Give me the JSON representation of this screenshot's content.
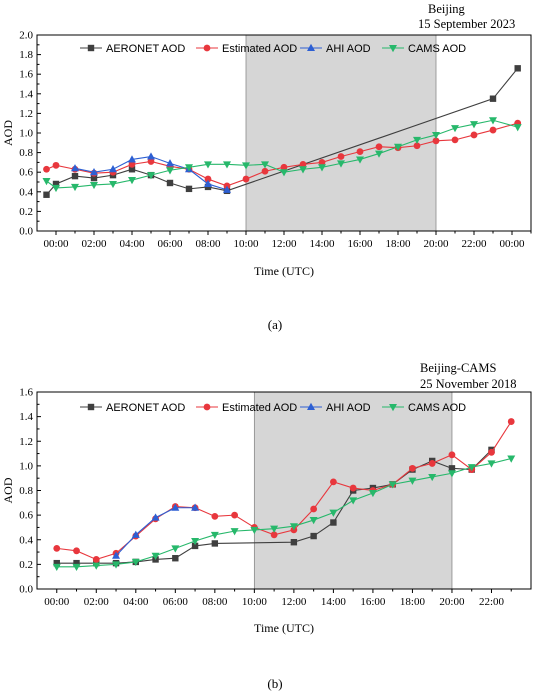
{
  "chart_data": [
    {
      "type": "line",
      "panel_label": "(a)",
      "annotation": [
        "Beijing",
        "15 September 2023"
      ],
      "xlabel": "Time (UTC)",
      "ylabel": "AOD",
      "ylim": [
        0,
        2.0
      ],
      "yticks": [
        "0.0",
        "0.2",
        "0.4",
        "0.6",
        "0.8",
        "1.0",
        "1.2",
        "1.4",
        "1.6",
        "1.8",
        "2.0"
      ],
      "xlim": [
        -1,
        25
      ],
      "xticks": [
        "00:00",
        "02:00",
        "04:00",
        "06:00",
        "08:00",
        "10:00",
        "12:00",
        "14:00",
        "16:00",
        "18:00",
        "20:00",
        "22:00",
        "00:00"
      ],
      "shaded_range": [
        10,
        20
      ],
      "grid": false,
      "legend_position": "top",
      "series": [
        {
          "name": "AERONET AOD",
          "color": "#3f3f3f",
          "marker": "square",
          "x": [
            -0.5,
            0,
            1,
            2,
            3,
            4,
            5,
            6,
            7,
            8,
            9,
            23,
            24.3
          ],
          "y": [
            0.37,
            0.48,
            0.56,
            0.54,
            0.57,
            0.63,
            0.57,
            0.49,
            0.43,
            0.45,
            0.41,
            1.35,
            1.66
          ]
        },
        {
          "name": "Estimated AOD",
          "color": "#e8373d",
          "marker": "circle",
          "x": [
            -0.5,
            0,
            1,
            2,
            3,
            4,
            5,
            6,
            7,
            8,
            9,
            10,
            11,
            12,
            13,
            14,
            15,
            16,
            17,
            18,
            19,
            20,
            21,
            22,
            23,
            24.3
          ],
          "y": [
            0.63,
            0.67,
            0.63,
            0.59,
            0.6,
            0.68,
            0.71,
            0.66,
            0.63,
            0.53,
            0.46,
            0.53,
            0.61,
            0.65,
            0.68,
            0.7,
            0.76,
            0.81,
            0.86,
            0.85,
            0.87,
            0.92,
            0.93,
            0.98,
            1.03,
            1.1
          ]
        },
        {
          "name": "AHI AOD",
          "color": "#2d5fd3",
          "marker": "triangle-up",
          "x": [
            1,
            2,
            3,
            4,
            5,
            6,
            7,
            8,
            9
          ],
          "y": [
            0.64,
            0.6,
            0.63,
            0.73,
            0.76,
            0.69,
            0.63,
            0.48,
            0.42
          ]
        },
        {
          "name": "CAMS AOD",
          "color": "#27b86b",
          "marker": "triangle-down",
          "x": [
            -0.5,
            0,
            1,
            2,
            3,
            4,
            5,
            6,
            7,
            8,
            9,
            10,
            11,
            12,
            13,
            14,
            15,
            16,
            17,
            18,
            19,
            20,
            21,
            22,
            23,
            24.3
          ],
          "y": [
            0.51,
            0.44,
            0.45,
            0.47,
            0.48,
            0.52,
            0.57,
            0.62,
            0.65,
            0.68,
            0.68,
            0.67,
            0.68,
            0.6,
            0.63,
            0.65,
            0.69,
            0.73,
            0.79,
            0.86,
            0.93,
            0.98,
            1.05,
            1.09,
            1.13,
            1.06
          ]
        }
      ]
    },
    {
      "type": "line",
      "panel_label": "(b)",
      "annotation": [
        "Beijing-CAMS",
        "25 November  2018"
      ],
      "xlabel": "Time (UTC)",
      "ylabel": "AOD",
      "ylim": [
        0,
        1.6
      ],
      "yticks": [
        "0.0",
        "0.2",
        "0.4",
        "0.6",
        "0.8",
        "1.0",
        "1.2",
        "1.4",
        "1.6"
      ],
      "xlim": [
        -1,
        24
      ],
      "xticks": [
        "00:00",
        "02:00",
        "04:00",
        "06:00",
        "08:00",
        "10:00",
        "12:00",
        "14:00",
        "16:00",
        "18:00",
        "20:00",
        "22:00"
      ],
      "shaded_range": [
        10,
        20
      ],
      "grid": false,
      "legend_position": "top",
      "series": [
        {
          "name": "AERONET AOD",
          "color": "#3f3f3f",
          "marker": "square",
          "x": [
            0,
            1,
            2,
            3,
            4,
            5,
            6,
            7,
            8,
            12,
            13,
            14,
            15,
            16,
            17,
            18,
            19,
            20,
            21,
            22
          ],
          "y": [
            0.21,
            0.21,
            0.21,
            0.21,
            0.22,
            0.24,
            0.25,
            0.35,
            0.37,
            0.38,
            0.43,
            0.54,
            0.8,
            0.82,
            0.85,
            0.97,
            1.04,
            0.98,
            0.97,
            1.13
          ]
        },
        {
          "name": "Estimated AOD",
          "color": "#e8373d",
          "marker": "circle",
          "x": [
            0,
            1,
            2,
            3,
            4,
            5,
            6,
            7,
            8,
            9,
            10,
            11,
            12,
            13,
            14,
            15,
            16,
            17,
            18,
            19,
            20,
            21,
            22,
            23
          ],
          "y": [
            0.33,
            0.31,
            0.24,
            0.29,
            0.43,
            0.57,
            0.67,
            0.66,
            0.59,
            0.6,
            0.5,
            0.44,
            0.48,
            0.65,
            0.87,
            0.82,
            0.8,
            0.85,
            0.98,
            1.02,
            1.09,
            0.97,
            1.11,
            1.36
          ]
        },
        {
          "name": "AHI AOD",
          "color": "#2d5fd3",
          "marker": "triangle-up",
          "x": [
            3,
            4,
            5,
            6,
            7
          ],
          "y": [
            0.27,
            0.44,
            0.58,
            0.66,
            0.66
          ]
        },
        {
          "name": "CAMS AOD",
          "color": "#27b86b",
          "marker": "triangle-down",
          "x": [
            0,
            1,
            2,
            3,
            4,
            5,
            6,
            7,
            8,
            9,
            10,
            11,
            12,
            13,
            14,
            15,
            16,
            17,
            18,
            19,
            20,
            21,
            22,
            23
          ],
          "y": [
            0.18,
            0.18,
            0.19,
            0.2,
            0.22,
            0.27,
            0.33,
            0.39,
            0.44,
            0.47,
            0.48,
            0.49,
            0.51,
            0.56,
            0.62,
            0.72,
            0.78,
            0.85,
            0.88,
            0.91,
            0.94,
            0.99,
            1.02,
            1.06
          ]
        }
      ]
    }
  ]
}
